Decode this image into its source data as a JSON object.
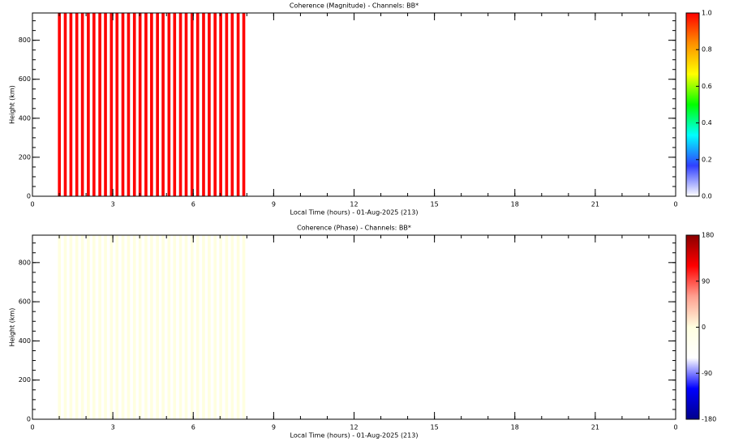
{
  "chart_data": [
    {
      "type": "heatmap",
      "title": "Coherence (Magnitude) - Channels: BB*",
      "x_label": "Local Time (hours) - 01-Aug-2025 (213)",
      "y_label": "Height (km)",
      "x": [
        0.95,
        1.17,
        1.38,
        1.6,
        1.81,
        2.03,
        2.24,
        2.46,
        2.67,
        2.89,
        3.1,
        3.32,
        3.53,
        3.75,
        3.96,
        4.18,
        4.39,
        4.61,
        4.82,
        5.04,
        5.25,
        5.47,
        5.68,
        5.9,
        6.11,
        6.33,
        6.54,
        6.76,
        6.97,
        7.19,
        7.4,
        7.62,
        7.83
      ],
      "values": [
        1,
        1,
        1,
        1,
        1,
        1,
        1,
        1,
        1,
        1,
        1,
        1,
        1,
        1,
        1,
        1,
        1,
        1,
        1,
        1,
        1,
        1,
        1,
        1,
        1,
        1,
        1,
        1,
        1,
        1,
        1,
        1,
        1
      ],
      "xlim": [
        0,
        24
      ],
      "xticks": [
        0,
        3,
        6,
        9,
        12,
        15,
        18,
        21,
        {
          "value": 24,
          "label": "0"
        }
      ],
      "ylim": [
        0,
        940
      ],
      "yticks": [
        0,
        200,
        400,
        600,
        800
      ],
      "clim": [
        0,
        1
      ],
      "cticks": [
        {
          "value": 0,
          "label": "0.0"
        },
        {
          "value": 0.2,
          "label": "0.2"
        },
        {
          "value": 0.4,
          "label": "0.4"
        },
        {
          "value": 0.6,
          "label": "0.6"
        },
        {
          "value": 0.8,
          "label": "0.8"
        },
        {
          "value": 1,
          "label": "1.0"
        }
      ],
      "colormap": [
        "#ffffff",
        "#3040ff",
        "#00ffff",
        "#00ff00",
        "#ffff00",
        "#ff9000",
        "#ff0000"
      ]
    },
    {
      "type": "heatmap",
      "title": "Coherence (Phase) - Channels: BB*",
      "x_label": "Local Time (hours) - 01-Aug-2025 (213)",
      "y_label": "Height (km)",
      "x": [
        0.95,
        1.17,
        1.38,
        1.6,
        1.81,
        2.03,
        2.24,
        2.46,
        2.67,
        2.89,
        3.1,
        3.32,
        3.53,
        3.75,
        3.96,
        4.18,
        4.39,
        4.61,
        4.82,
        5.04,
        5.25,
        5.47,
        5.68,
        5.9,
        6.11,
        6.33,
        6.54,
        6.76,
        6.97,
        7.19,
        7.4,
        7.62,
        7.83
      ],
      "values": [
        0,
        0,
        0,
        0,
        0,
        0,
        0,
        0,
        0,
        0,
        0,
        0,
        0,
        0,
        0,
        0,
        0,
        0,
        0,
        0,
        0,
        0,
        0,
        0,
        0,
        0,
        0,
        0,
        0,
        0,
        0,
        0,
        0
      ],
      "xlim": [
        0,
        24
      ],
      "xticks": [
        0,
        3,
        6,
        9,
        12,
        15,
        18,
        21,
        {
          "value": 24,
          "label": "0"
        }
      ],
      "ylim": [
        0,
        940
      ],
      "yticks": [
        0,
        200,
        400,
        600,
        800
      ],
      "clim": [
        -180,
        180
      ],
      "cticks": [
        -180,
        -90,
        0,
        90,
        180
      ],
      "colormap": [
        "#00008b",
        "#0000ff",
        "#ffffff",
        "#ffffe0",
        "#ffa090",
        "#ff0000",
        "#8b0000"
      ]
    }
  ]
}
